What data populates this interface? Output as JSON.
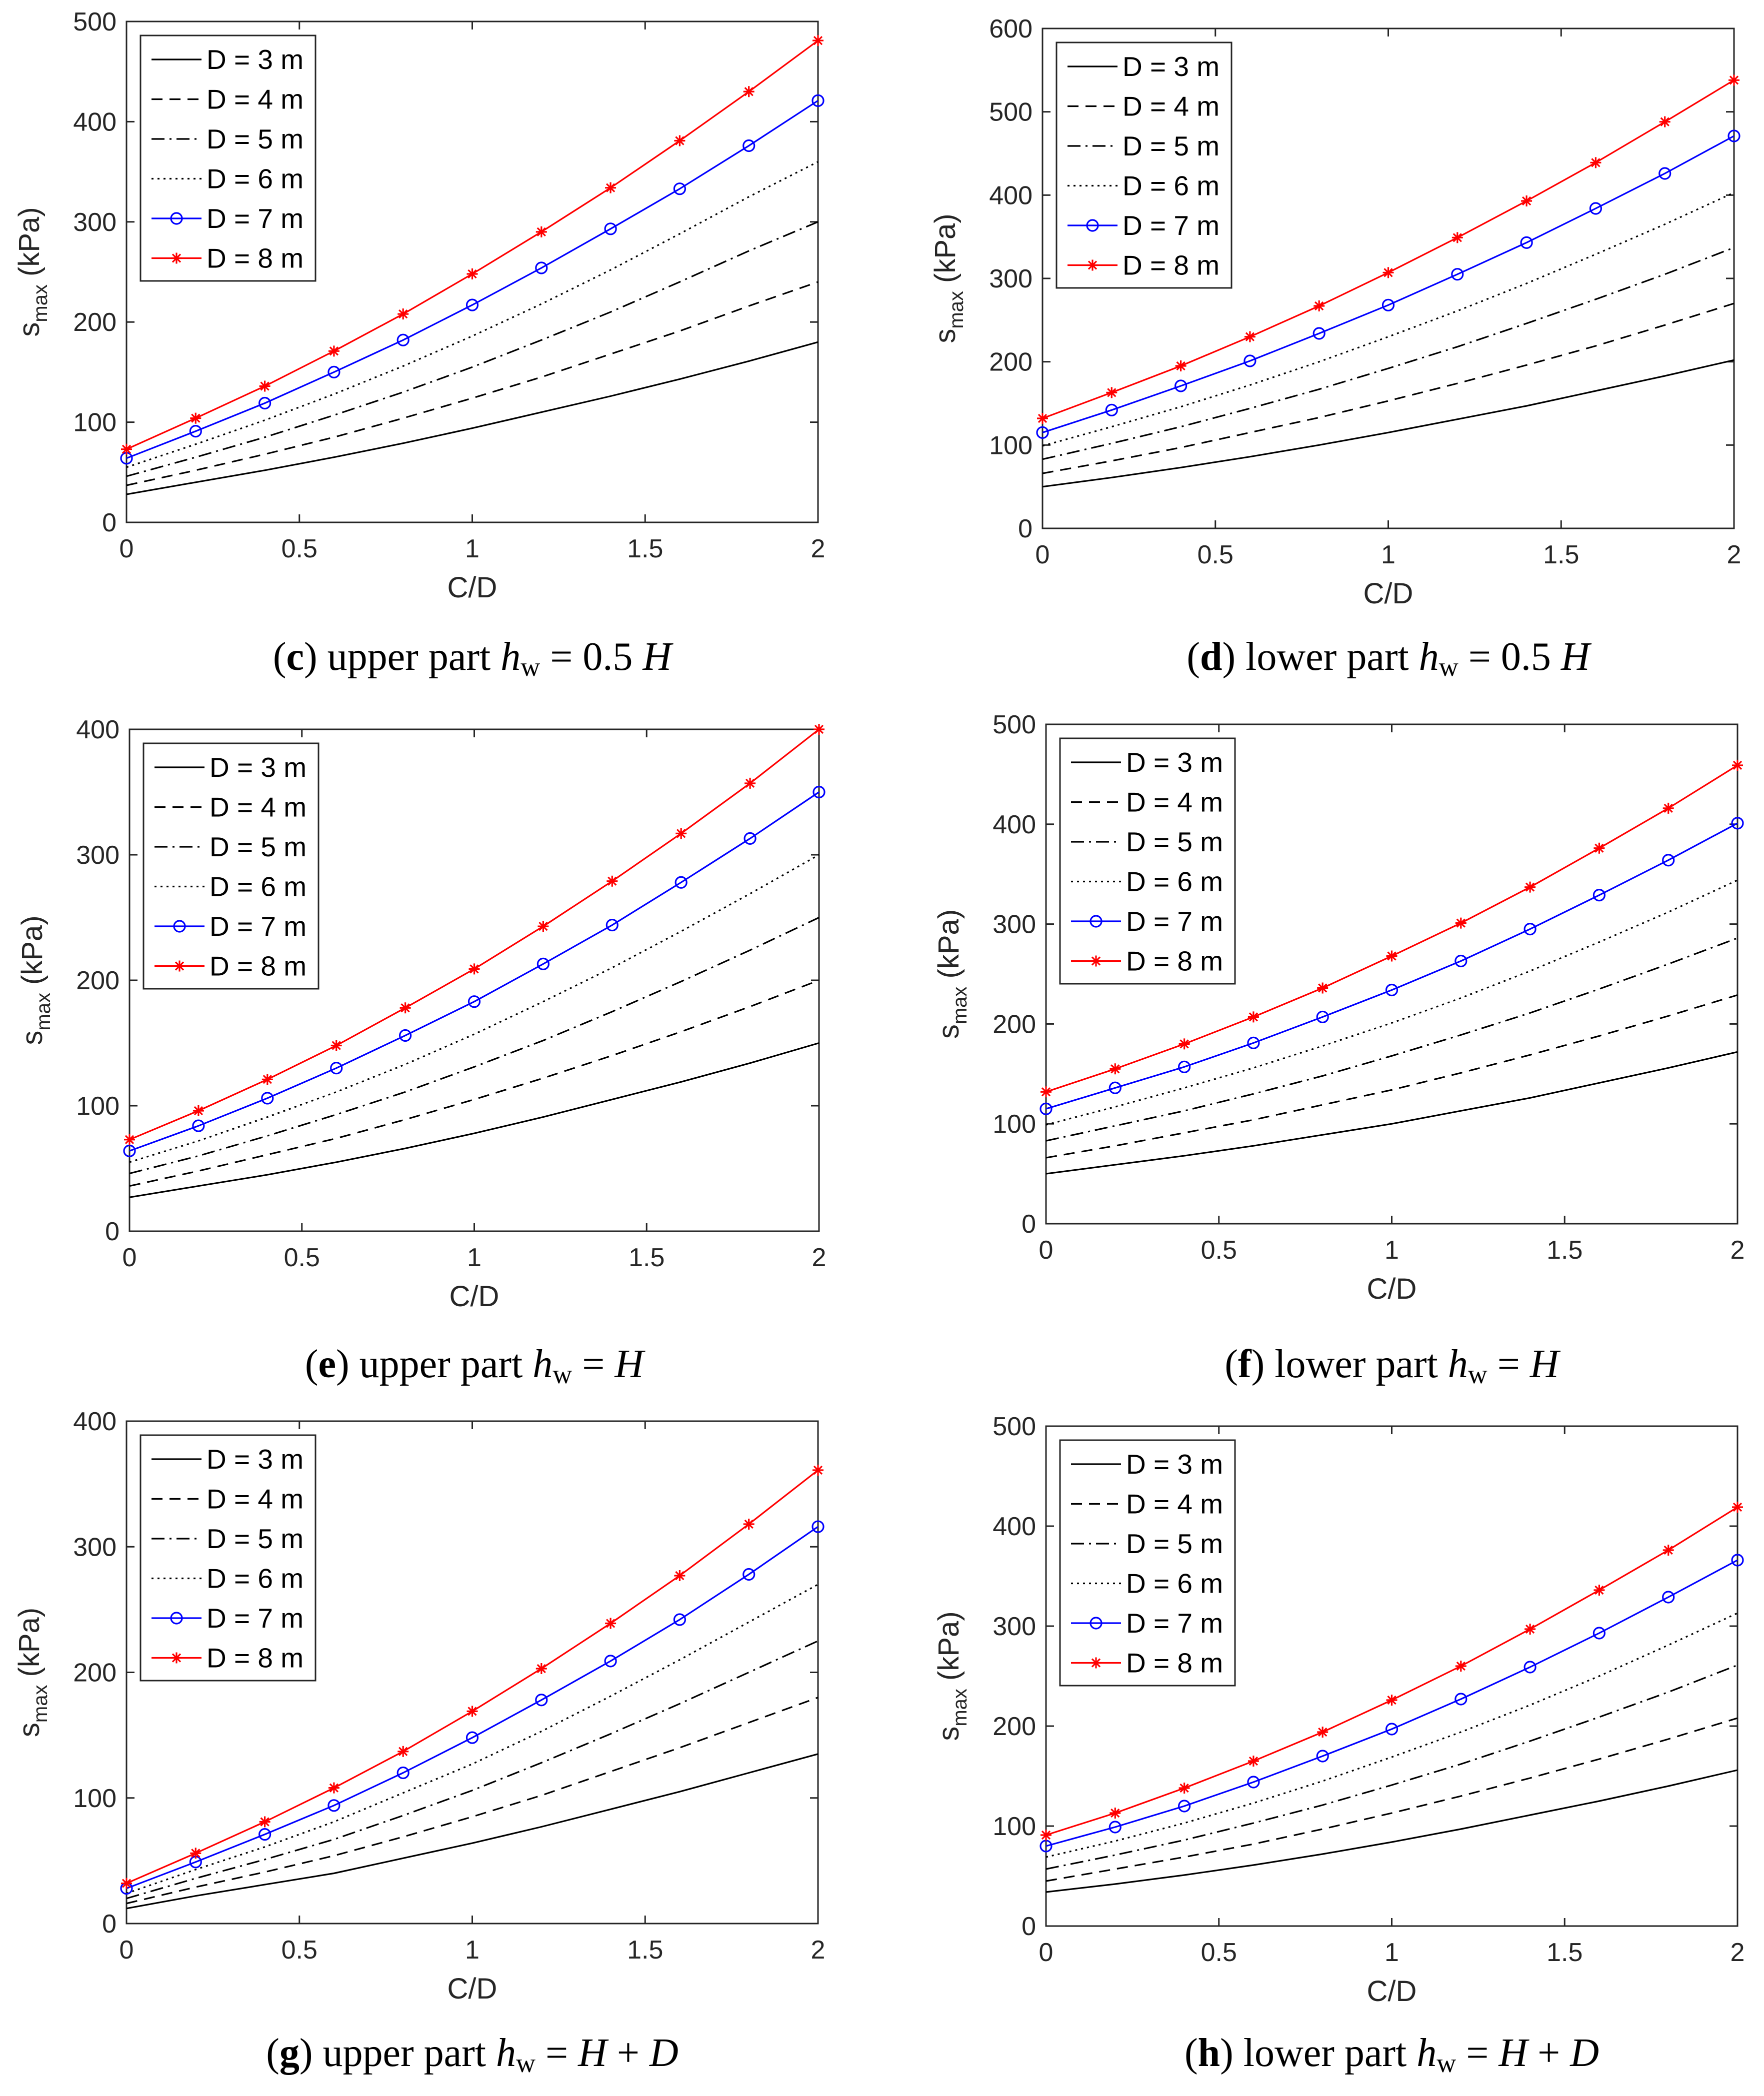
{
  "figure": {
    "colors": {
      "black": "#000000",
      "blue": "#0000ff",
      "red": "#ff0000"
    },
    "series_styles": [
      {
        "name": "D = 3 m",
        "color": "#000000",
        "dash": "solid",
        "marker": "none"
      },
      {
        "name": "D = 4 m",
        "color": "#000000",
        "dash": "dashed",
        "marker": "none"
      },
      {
        "name": "D = 5 m",
        "color": "#000000",
        "dash": "dashdot",
        "marker": "none"
      },
      {
        "name": "D = 6 m",
        "color": "#000000",
        "dash": "dotted",
        "marker": "none"
      },
      {
        "name": "D = 7 m",
        "color": "#0000ff",
        "dash": "solid",
        "marker": "circle"
      },
      {
        "name": "D = 8 m",
        "color": "#ff0000",
        "dash": "solid",
        "marker": "asterisk"
      }
    ]
  },
  "chart_data": [
    {
      "type": "line",
      "caption": {
        "letter": "c",
        "text": " upper part ",
        "var": "h",
        "sub": "w",
        "rel": " = 0.5 ",
        "rhs": [
          {
            "t": "H",
            "i": true
          }
        ]
      },
      "xlabel": "C/D",
      "ylabel": "s",
      "ylabel_sub": "max",
      "ylabel_unit": " (kPa)",
      "xlim": [
        0,
        2
      ],
      "ylim": [
        0,
        500
      ],
      "xticks": [
        "0",
        "0.5",
        "1",
        "1.5",
        "2"
      ],
      "yticks": [
        "0",
        "100",
        "200",
        "300",
        "400",
        "500"
      ],
      "legend_position": "top-left",
      "x": [
        0,
        0.2,
        0.4,
        0.6,
        0.8,
        1.0,
        1.2,
        1.4,
        1.6,
        1.8,
        2.0
      ],
      "series": [
        {
          "name": "D = 3 m",
          "values": [
            28,
            40,
            52,
            65,
            79,
            94,
            110,
            126,
            143,
            161,
            180
          ]
        },
        {
          "name": "D = 4 m",
          "values": [
            37,
            52,
            68,
            85,
            104,
            124,
            145,
            168,
            191,
            216,
            240
          ]
        },
        {
          "name": "D = 5 m",
          "values": [
            46,
            65,
            85,
            107,
            130,
            155,
            182,
            210,
            240,
            271,
            300
          ]
        },
        {
          "name": "D = 6 m",
          "values": [
            55,
            78,
            102,
            128,
            156,
            186,
            218,
            252,
            288,
            325,
            360
          ]
        },
        {
          "name": "D = 7 m",
          "values": [
            64,
            91,
            119,
            150,
            182,
            217,
            254,
            293,
            333,
            376,
            421
          ]
        },
        {
          "name": "D = 8 m",
          "values": [
            73,
            104,
            136,
            171,
            208,
            248,
            290,
            334,
            381,
            430,
            481
          ]
        }
      ]
    },
    {
      "type": "line",
      "caption": {
        "letter": "d",
        "text": " lower part ",
        "var": "h",
        "sub": "w",
        "rel": " = 0.5 ",
        "rhs": [
          {
            "t": "H",
            "i": true
          }
        ]
      },
      "xlabel": "C/D",
      "ylabel": "s",
      "ylabel_sub": "max",
      "ylabel_unit": " (kPa)",
      "xlim": [
        0,
        2
      ],
      "ylim": [
        0,
        600
      ],
      "xticks": [
        "0",
        "0.5",
        "1",
        "1.5",
        "2"
      ],
      "yticks": [
        "0",
        "100",
        "200",
        "300",
        "400",
        "500",
        "600"
      ],
      "legend_position": "top-left",
      "x": [
        0,
        0.2,
        0.4,
        0.6,
        0.8,
        1.0,
        1.2,
        1.4,
        1.6,
        1.8,
        2.0
      ],
      "series": [
        {
          "name": "D = 3 m",
          "values": [
            50,
            61,
            73,
            86,
            100,
            115,
            131,
            147,
            165,
            183,
            202
          ]
        },
        {
          "name": "D = 4 m",
          "values": [
            66,
            81,
            97,
            115,
            133,
            153,
            174,
            196,
            219,
            244,
            270
          ]
        },
        {
          "name": "D = 5 m",
          "values": [
            83,
            102,
            122,
            144,
            167,
            192,
            218,
            246,
            275,
            305,
            337
          ]
        },
        {
          "name": "D = 6 m",
          "values": [
            99,
            122,
            146,
            172,
            200,
            230,
            261,
            294,
            329,
            365,
            403
          ]
        },
        {
          "name": "D = 7 m",
          "values": [
            115,
            142,
            171,
            201,
            234,
            268,
            305,
            343,
            384,
            426,
            471
          ]
        },
        {
          "name": "D = 8 m",
          "values": [
            132,
            163,
            195,
            230,
            267,
            307,
            349,
            393,
            439,
            488,
            538
          ]
        }
      ]
    },
    {
      "type": "line",
      "caption": {
        "letter": "e",
        "text": " upper part ",
        "var": "h",
        "sub": "w",
        "rel": " = ",
        "rhs": [
          {
            "t": "H",
            "i": true
          }
        ]
      },
      "xlabel": "C/D",
      "ylabel": "s",
      "ylabel_sub": "max",
      "ylabel_unit": " (kPa)",
      "xlim": [
        0,
        2
      ],
      "ylim": [
        0,
        400
      ],
      "xticks": [
        "0",
        "0.5",
        "1",
        "1.5",
        "2"
      ],
      "yticks": [
        "0",
        "100",
        "200",
        "300",
        "400"
      ],
      "legend_position": "top-left",
      "x": [
        0,
        0.2,
        0.4,
        0.6,
        0.8,
        1.0,
        1.2,
        1.4,
        1.6,
        1.8,
        2.0
      ],
      "series": [
        {
          "name": "D = 3 m",
          "values": [
            27,
            36,
            45,
            55,
            66,
            78,
            91,
            105,
            119,
            134,
            150
          ]
        },
        {
          "name": "D = 4 m",
          "values": [
            36,
            48,
            61,
            74,
            89,
            105,
            122,
            140,
            159,
            179,
            200
          ]
        },
        {
          "name": "D = 5 m",
          "values": [
            46,
            60,
            76,
            93,
            111,
            131,
            152,
            175,
            199,
            224,
            250
          ]
        },
        {
          "name": "D = 6 m",
          "values": [
            55,
            72,
            91,
            111,
            133,
            157,
            183,
            210,
            239,
            269,
            300
          ]
        },
        {
          "name": "D = 7 m",
          "values": [
            64,
            84,
            106,
            130,
            156,
            183,
            213,
            244,
            278,
            313,
            350
          ]
        },
        {
          "name": "D = 8 m",
          "values": [
            73,
            96,
            121,
            148,
            178,
            209,
            243,
            279,
            317,
            357,
            400
          ]
        }
      ]
    },
    {
      "type": "line",
      "caption": {
        "letter": "f",
        "text": " lower part ",
        "var": "h",
        "sub": "w",
        "rel": " = ",
        "rhs": [
          {
            "t": "H",
            "i": true
          }
        ]
      },
      "xlabel": "C/D",
      "ylabel": "s",
      "ylabel_sub": "max",
      "ylabel_unit": " (kPa)",
      "xlim": [
        0,
        2
      ],
      "ylim": [
        0,
        500
      ],
      "xticks": [
        "0",
        "0.5",
        "1",
        "1.5",
        "2"
      ],
      "yticks": [
        "0",
        "100",
        "200",
        "300",
        "400",
        "500"
      ],
      "legend_position": "top-left",
      "x": [
        0,
        0.2,
        0.4,
        0.6,
        0.8,
        1.0,
        1.2,
        1.4,
        1.6,
        1.8,
        2.0
      ],
      "series": [
        {
          "name": "D = 3 m",
          "values": [
            50,
            59,
            68,
            78,
            89,
            100,
            113,
            126,
            141,
            156,
            172
          ]
        },
        {
          "name": "D = 4 m",
          "values": [
            66,
            78,
            91,
            104,
            119,
            134,
            151,
            169,
            188,
            208,
            229
          ]
        },
        {
          "name": "D = 5 m",
          "values": [
            83,
            98,
            113,
            130,
            148,
            168,
            189,
            211,
            235,
            260,
            286
          ]
        },
        {
          "name": "D = 6 m",
          "values": [
            99,
            117,
            136,
            156,
            178,
            201,
            226,
            253,
            282,
            312,
            344
          ]
        },
        {
          "name": "D = 7 m",
          "values": [
            115,
            136,
            157,
            181,
            207,
            234,
            263,
            295,
            329,
            364,
            401
          ]
        },
        {
          "name": "D = 8 m",
          "values": [
            132,
            155,
            180,
            207,
            236,
            268,
            301,
            337,
            376,
            416,
            459
          ]
        }
      ]
    },
    {
      "type": "line",
      "caption": {
        "letter": "g",
        "text": " upper part ",
        "var": "h",
        "sub": "w",
        "rel": " = ",
        "rhs": [
          {
            "t": "H",
            "i": true
          },
          {
            "t": " + ",
            "i": false
          },
          {
            "t": "D",
            "i": true
          }
        ]
      },
      "xlabel": "C/D",
      "ylabel": "s",
      "ylabel_sub": "max",
      "ylabel_unit": " (kPa)",
      "xlim": [
        0,
        2
      ],
      "ylim": [
        0,
        400
      ],
      "xticks": [
        "0",
        "0.5",
        "1",
        "1.5",
        "2"
      ],
      "yticks": [
        "0",
        "100",
        "200",
        "300",
        "400"
      ],
      "legend_position": "top-left",
      "x": [
        0,
        0.2,
        0.4,
        0.6,
        0.8,
        1.0,
        1.2,
        1.4,
        1.6,
        1.8,
        2.0
      ],
      "series": [
        {
          "name": "D = 3 m",
          "values": [
            12,
            22,
            31,
            40,
            52,
            64,
            77,
            91,
            105,
            120,
            135
          ]
        },
        {
          "name": "D = 4 m",
          "values": [
            16,
            29,
            41,
            54,
            69,
            85,
            102,
            121,
            140,
            160,
            180
          ]
        },
        {
          "name": "D = 5 m",
          "values": [
            20,
            36,
            51,
            67,
            86,
            106,
            128,
            151,
            175,
            200,
            225
          ]
        },
        {
          "name": "D = 6 m",
          "values": [
            24,
            43,
            61,
            81,
            104,
            127,
            153,
            181,
            210,
            240,
            270
          ]
        },
        {
          "name": "D = 7 m",
          "values": [
            28,
            49,
            71,
            94,
            120,
            148,
            178,
            209,
            242,
            278,
            316
          ]
        },
        {
          "name": "D = 8 m",
          "values": [
            32,
            56,
            81,
            108,
            137,
            169,
            203,
            239,
            277,
            318,
            361
          ]
        }
      ]
    },
    {
      "type": "line",
      "caption": {
        "letter": "h",
        "text": " lower part ",
        "var": "h",
        "sub": "w",
        "rel": " = ",
        "rhs": [
          {
            "t": "H",
            "i": true
          },
          {
            "t": " + ",
            "i": false
          },
          {
            "t": "D",
            "i": true
          }
        ]
      },
      "xlabel": "C/D",
      "ylabel": "s",
      "ylabel_sub": "max",
      "ylabel_unit": " (kPa)",
      "xlim": [
        0,
        2
      ],
      "ylim": [
        0,
        500
      ],
      "xticks": [
        "0",
        "0.5",
        "1",
        "1.5",
        "2"
      ],
      "yticks": [
        "0",
        "100",
        "200",
        "300",
        "400",
        "500"
      ],
      "legend_position": "top-left",
      "x": [
        0,
        0.2,
        0.4,
        0.6,
        0.8,
        1.0,
        1.2,
        1.4,
        1.6,
        1.8,
        2.0
      ],
      "series": [
        {
          "name": "D = 3 m",
          "values": [
            34,
            42,
            51,
            61,
            72,
            84,
            97,
            111,
            125,
            140,
            156
          ]
        },
        {
          "name": "D = 4 m",
          "values": [
            45,
            57,
            69,
            82,
            97,
            113,
            130,
            148,
            167,
            187,
            208
          ]
        },
        {
          "name": "D = 5 m",
          "values": [
            57,
            71,
            86,
            103,
            121,
            141,
            162,
            185,
            209,
            234,
            261
          ]
        },
        {
          "name": "D = 6 m",
          "values": [
            69,
            85,
            103,
            123,
            145,
            169,
            194,
            221,
            250,
            281,
            313
          ]
        },
        {
          "name": "D = 7 m",
          "values": [
            80,
            99,
            120,
            144,
            170,
            197,
            227,
            259,
            293,
            329,
            366
          ]
        },
        {
          "name": "D = 8 m",
          "values": [
            91,
            113,
            138,
            165,
            194,
            226,
            260,
            297,
            336,
            376,
            419
          ]
        }
      ]
    }
  ]
}
